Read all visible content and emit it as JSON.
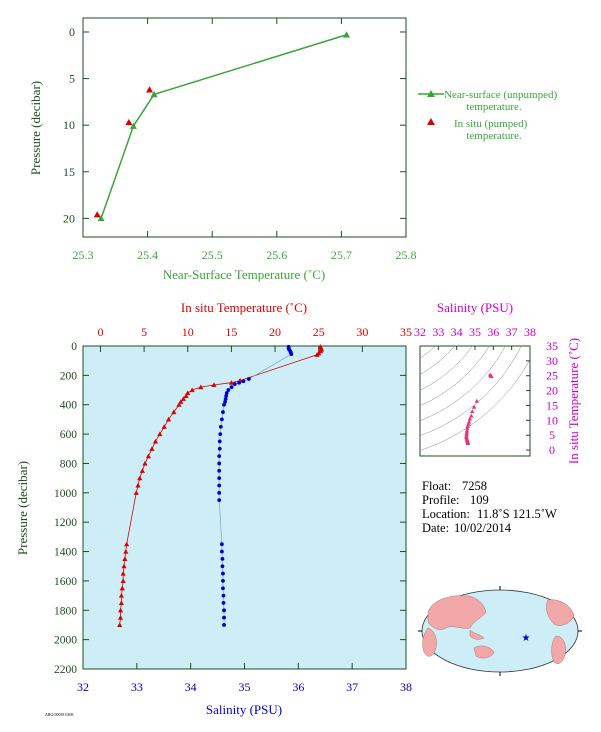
{
  "colors": {
    "green": "#3aa63a",
    "red": "#dd0000",
    "blue": "#0000cc",
    "magenta": "#cc00cc",
    "axis_dark": "#1e4d1e",
    "panel_bg": "#cdeef7",
    "ts_point": "#e8337a",
    "land": "#f2a8a8",
    "ocean": "#cdeef7",
    "float_marker": "#0000cc"
  },
  "chart_data": [
    {
      "type": "line",
      "xlabel": "Near-Surface Temperature (˚C)",
      "ylabel": "Pressure (decibar)",
      "xlim": [
        25.3,
        25.8
      ],
      "ylim": [
        22,
        -1.5
      ],
      "x_ticks": [
        "25.3",
        "25.4",
        "25.5",
        "25.6",
        "25.7",
        "25.8"
      ],
      "y_ticks": [
        "0",
        "5",
        "10",
        "15",
        "20"
      ],
      "legend_position": "right",
      "series": [
        {
          "name": "Near-surface (unpumped) temperature.",
          "marker": "triangle",
          "points": [
            {
              "x": 25.708,
              "y": 0.3
            },
            {
              "x": 25.41,
              "y": 6.7
            },
            {
              "x": 25.378,
              "y": 10.1
            },
            {
              "x": 25.328,
              "y": 20.0
            }
          ]
        },
        {
          "name": "In situ (pumped) temperature.",
          "marker": "triangle",
          "points": [
            {
              "x": 25.403,
              "y": 6.2
            },
            {
              "x": 25.371,
              "y": 9.7
            },
            {
              "x": 25.322,
              "y": 19.6
            }
          ]
        }
      ]
    },
    {
      "type": "line",
      "top_xlabel": "In situ Temperature (˚C)",
      "bottom_xlabel": "Salinity (PSU)",
      "ylabel": "Pressure (decibar)",
      "temperature_lim": [
        -2,
        35
      ],
      "salinity_lim": [
        32,
        38
      ],
      "ylim": [
        2200,
        0
      ],
      "temperature_ticks": [
        "0",
        "5",
        "10",
        "15",
        "20",
        "25",
        "30",
        "35"
      ],
      "salinity_ticks": [
        "32",
        "33",
        "34",
        "35",
        "36",
        "37",
        "38"
      ],
      "y_ticks": [
        "0",
        "200",
        "400",
        "600",
        "800",
        "1000",
        "1200",
        "1400",
        "1600",
        "1800",
        "2000",
        "2200"
      ],
      "temperature_profile": [
        [
          25.2,
          5
        ],
        [
          25.3,
          15
        ],
        [
          25.3,
          25
        ],
        [
          25.2,
          35
        ],
        [
          25.0,
          50
        ],
        [
          24.8,
          60
        ],
        [
          16.0,
          235
        ],
        [
          15.0,
          250
        ],
        [
          13.0,
          265
        ],
        [
          11.5,
          280
        ],
        [
          10.5,
          300
        ],
        [
          10.0,
          320
        ],
        [
          9.8,
          340
        ],
        [
          9.5,
          360
        ],
        [
          9.2,
          380
        ],
        [
          9.0,
          400
        ],
        [
          8.4,
          450
        ],
        [
          7.8,
          500
        ],
        [
          7.3,
          550
        ],
        [
          6.8,
          600
        ],
        [
          6.3,
          650
        ],
        [
          5.9,
          700
        ],
        [
          5.5,
          750
        ],
        [
          5.1,
          800
        ],
        [
          4.8,
          850
        ],
        [
          4.5,
          900
        ],
        [
          4.3,
          950
        ],
        [
          4.1,
          1000
        ],
        [
          3.0,
          1350
        ],
        [
          2.9,
          1400
        ],
        [
          2.8,
          1450
        ],
        [
          2.7,
          1500
        ],
        [
          2.6,
          1550
        ],
        [
          2.6,
          1600
        ],
        [
          2.5,
          1650
        ],
        [
          2.4,
          1700
        ],
        [
          2.4,
          1750
        ],
        [
          2.3,
          1800
        ],
        [
          2.3,
          1850
        ],
        [
          2.2,
          1900
        ]
      ],
      "salinity_profile": [
        [
          35.82,
          5
        ],
        [
          35.82,
          15
        ],
        [
          35.83,
          25
        ],
        [
          35.85,
          35
        ],
        [
          35.86,
          45
        ],
        [
          35.87,
          55
        ],
        [
          35.08,
          225
        ],
        [
          34.98,
          240
        ],
        [
          34.9,
          250
        ],
        [
          34.82,
          260
        ],
        [
          34.76,
          280
        ],
        [
          34.7,
          300
        ],
        [
          34.67,
          320
        ],
        [
          34.66,
          340
        ],
        [
          34.65,
          360
        ],
        [
          34.64,
          380
        ],
        [
          34.62,
          400
        ],
        [
          34.6,
          450
        ],
        [
          34.58,
          500
        ],
        [
          34.56,
          550
        ],
        [
          34.55,
          600
        ],
        [
          34.54,
          650
        ],
        [
          34.54,
          700
        ],
        [
          34.53,
          750
        ],
        [
          34.53,
          800
        ],
        [
          34.53,
          850
        ],
        [
          34.53,
          900
        ],
        [
          34.53,
          950
        ],
        [
          34.53,
          1000
        ],
        [
          34.53,
          1050
        ],
        [
          34.58,
          1350
        ],
        [
          34.58,
          1400
        ],
        [
          34.59,
          1450
        ],
        [
          34.59,
          1500
        ],
        [
          34.6,
          1550
        ],
        [
          34.6,
          1600
        ],
        [
          34.6,
          1650
        ],
        [
          34.61,
          1700
        ],
        [
          34.61,
          1750
        ],
        [
          34.62,
          1800
        ],
        [
          34.62,
          1850
        ],
        [
          34.62,
          1900
        ]
      ]
    },
    {
      "type": "scatter",
      "top_xlabel": "Salinity (PSU)",
      "right_ylabel": "In situ Temperature (˚C)",
      "xlim": [
        32,
        38
      ],
      "ylim": [
        -2,
        35
      ],
      "x_ticks": [
        "32",
        "33",
        "34",
        "35",
        "36",
        "37",
        "38"
      ],
      "y_ticks": [
        "0",
        "5",
        "10",
        "15",
        "20",
        "25",
        "30",
        "35"
      ],
      "points": [
        [
          35.82,
          25.3
        ],
        [
          35.87,
          25.0
        ],
        [
          35.9,
          24.8
        ],
        [
          35.1,
          16.5
        ],
        [
          34.95,
          14.5
        ],
        [
          34.85,
          13.0
        ],
        [
          34.8,
          11.5
        ],
        [
          34.72,
          10.5
        ],
        [
          34.68,
          9.5
        ],
        [
          34.64,
          8.8
        ],
        [
          34.6,
          8.0
        ],
        [
          34.58,
          7.2
        ],
        [
          34.56,
          6.5
        ],
        [
          34.55,
          5.8
        ],
        [
          34.54,
          5.2
        ],
        [
          34.54,
          4.7
        ],
        [
          34.53,
          4.3
        ],
        [
          34.55,
          3.9
        ],
        [
          34.57,
          3.5
        ],
        [
          34.58,
          3.2
        ],
        [
          34.59,
          2.9
        ],
        [
          34.6,
          2.7
        ],
        [
          34.61,
          2.5
        ],
        [
          34.62,
          2.3
        ]
      ]
    }
  ],
  "metadata": {
    "float_label": "Float:",
    "float_value": "7258",
    "profile_label": "Profile:",
    "profile_value": "109",
    "location_label": "Location:",
    "location_value": "11.8˚S 121.5˚W",
    "date_label": "Date:",
    "date_value": "10/02/2014"
  },
  "footer_code": "ARGO0058 0308"
}
